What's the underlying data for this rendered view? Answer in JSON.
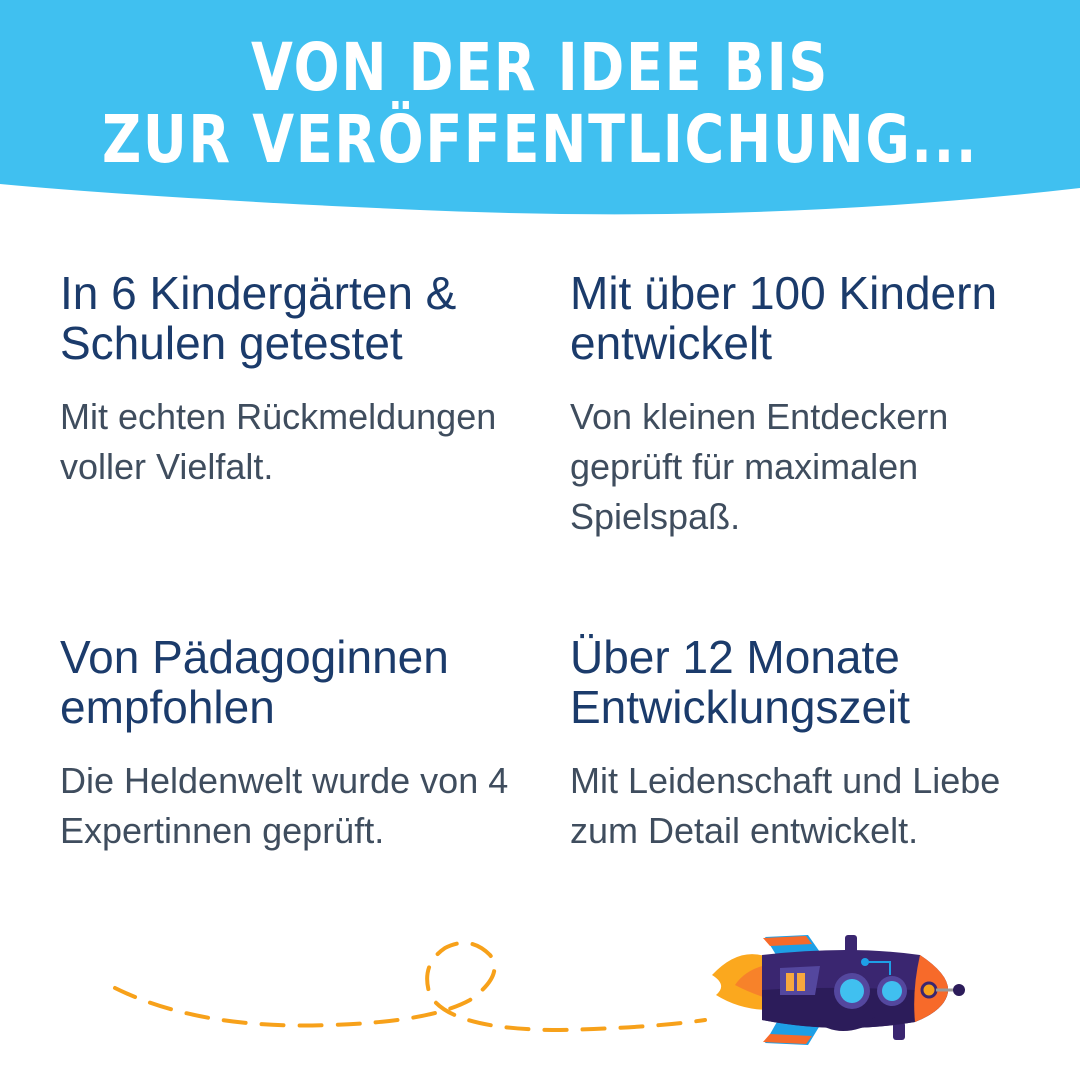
{
  "header": {
    "title_lines": [
      "VON DER IDEE BIS",
      "ZUR VERÖFFENTLICHUNG..."
    ],
    "background_color": "#40C0F0"
  },
  "features": [
    {
      "heading": "In 6 Kindergärten & Schulen getestet",
      "text": "Mit echten Rückmeldungen voller Vielfalt."
    },
    {
      "heading": "Mit über 100 Kindern entwickelt",
      "text": "Von kleinen Entdeckern geprüft für maximalen Spielspaß."
    },
    {
      "heading": "Von Pädagoginnen empfohlen",
      "text": "Die Heldenwelt wurde von 4 Expertinnen geprüft."
    },
    {
      "heading": "Über 12 Monate Entwicklungszeit",
      "text": "Mit Leidenschaft und Liebe zum Detail entwickelt."
    }
  ],
  "colors": {
    "heading": "#1B3B6B",
    "body": "#3F4D5E",
    "dash": "#F7A11A",
    "rocket_body": "#3A2670"
  },
  "illustration": {
    "icon": "rocket-icon",
    "trail": "dashed-flight-path"
  }
}
